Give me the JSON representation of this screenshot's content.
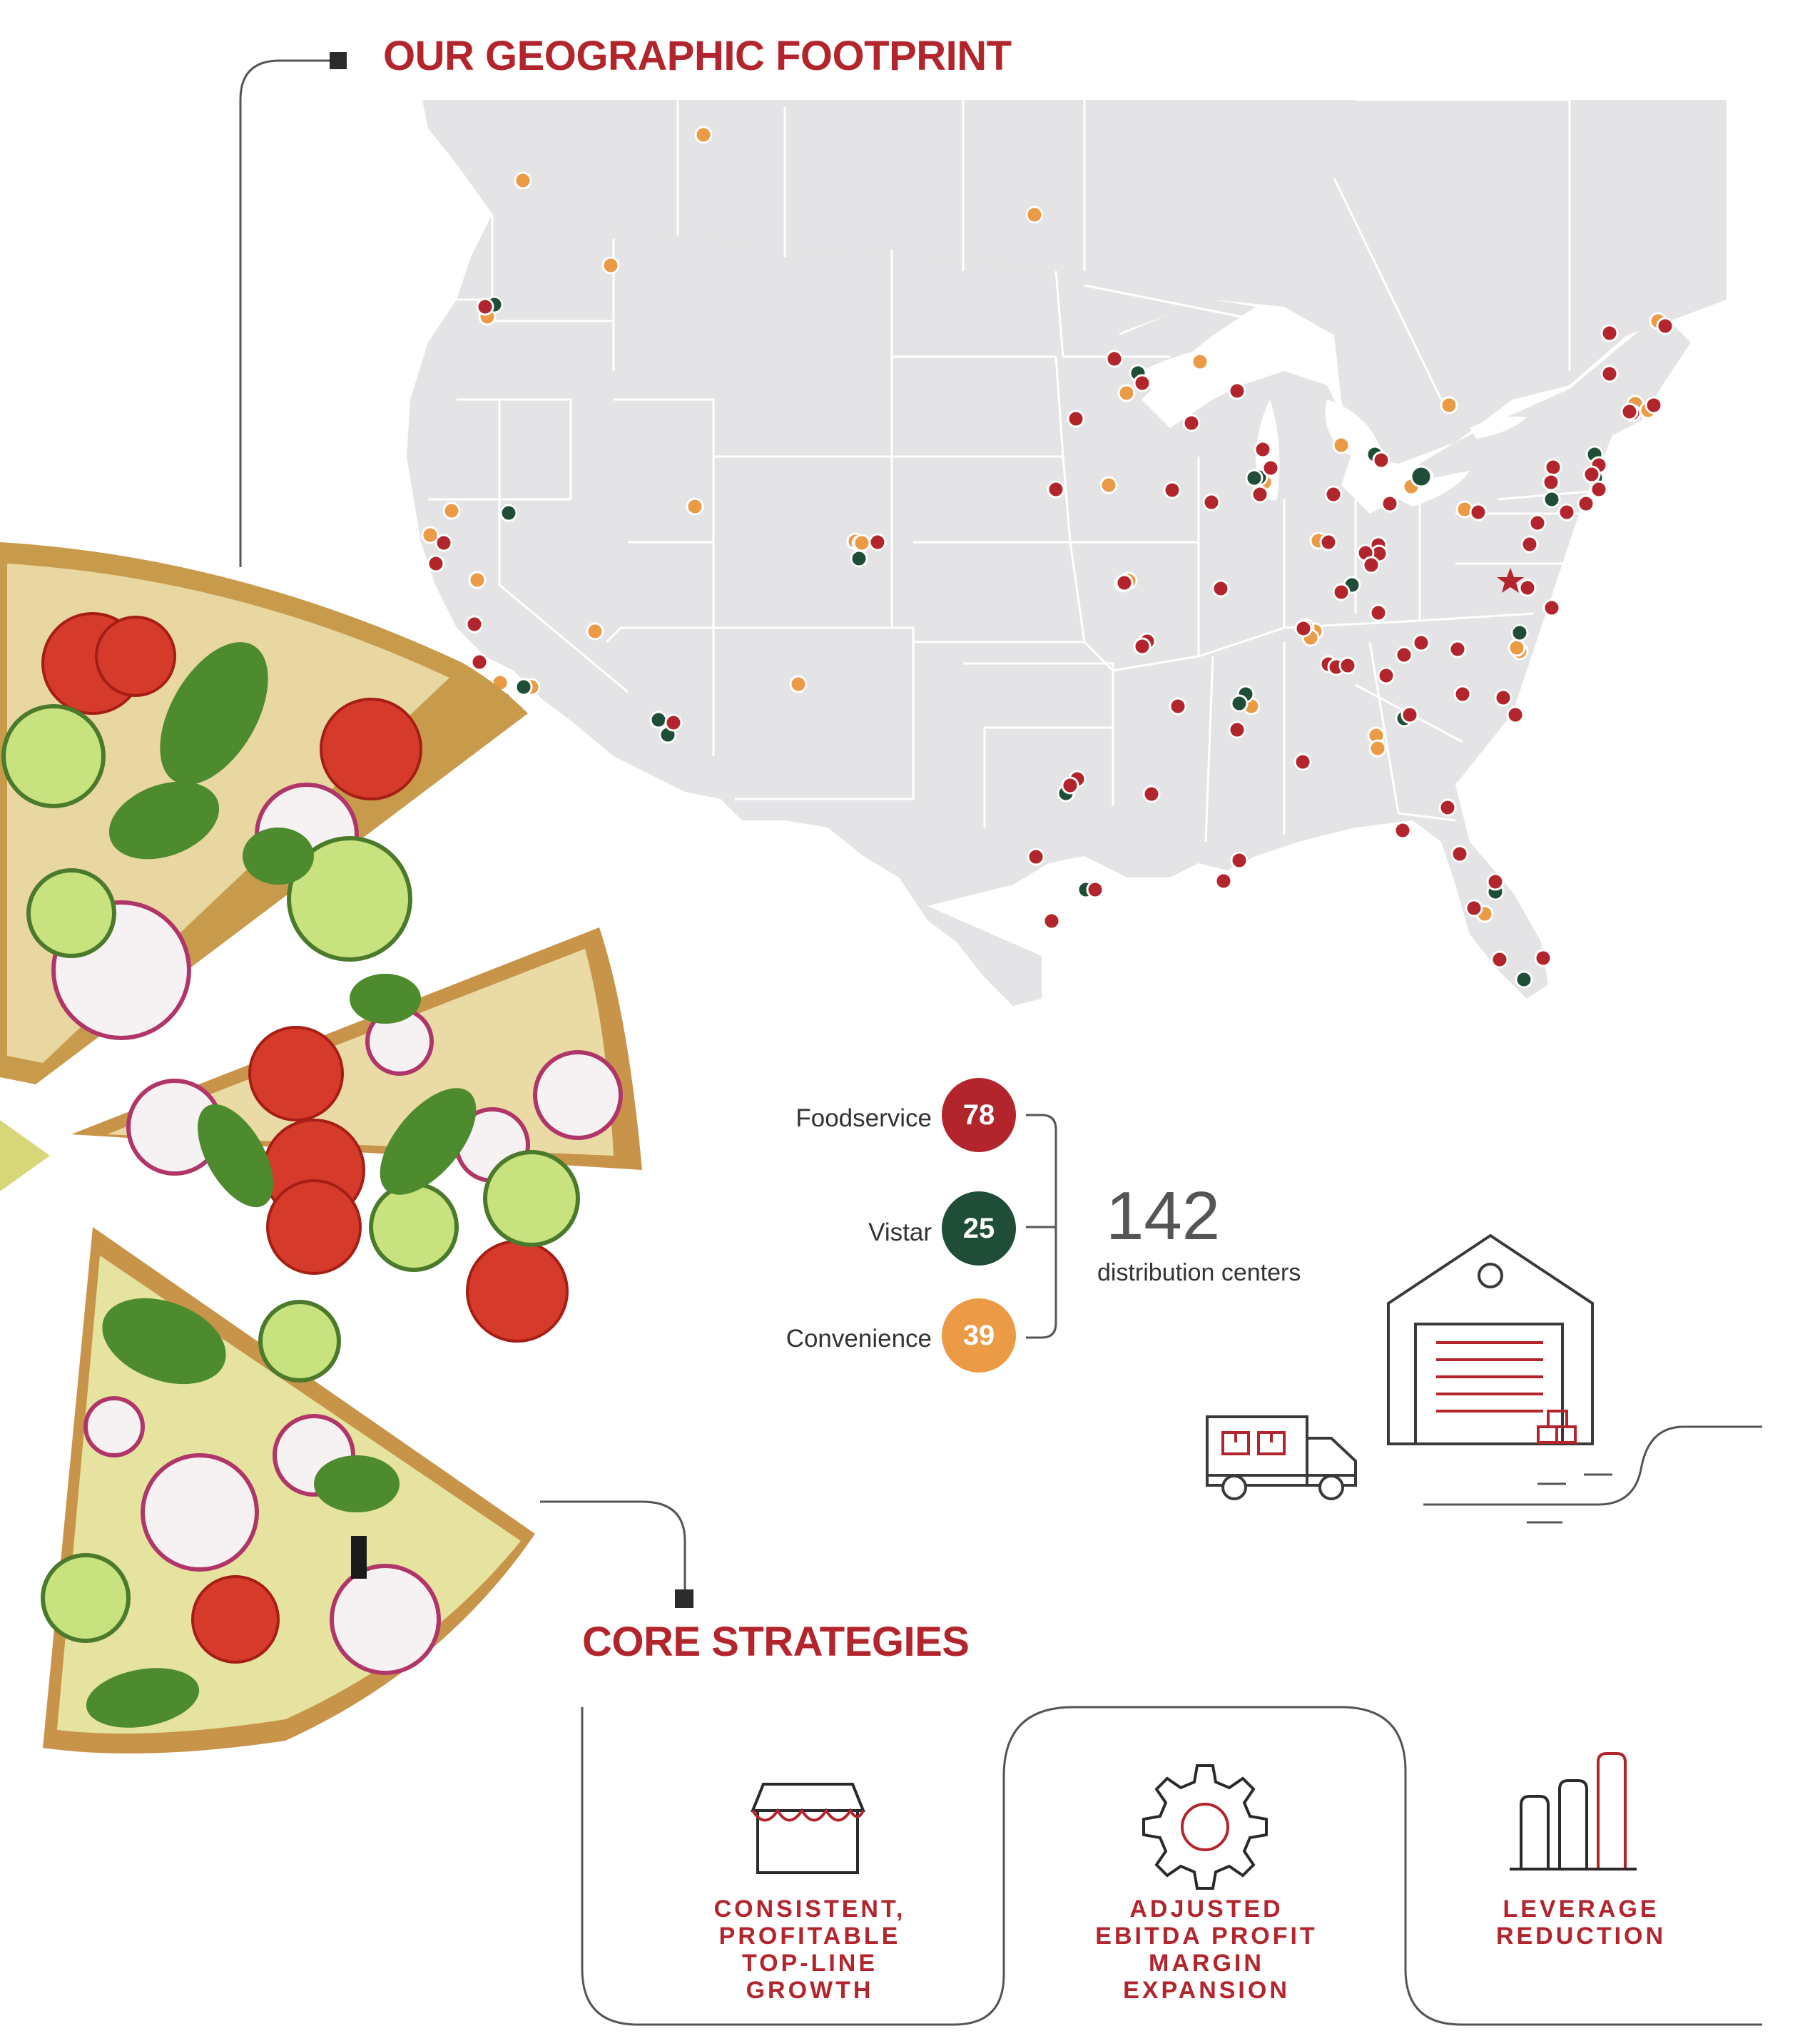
{
  "sections": {
    "geographic_title": "OUR GEOGRAPHIC FOOTPRINT",
    "core_title": "CORE STRATEGIES"
  },
  "legend": {
    "items": [
      {
        "label": "Foodservice",
        "count": "78",
        "color": "#b3252c"
      },
      {
        "label": "Vistar",
        "count": "25",
        "color": "#1f4d38"
      },
      {
        "label": "Convenience",
        "count": "39",
        "color": "#eb9a45"
      }
    ],
    "total_count": "142",
    "total_label": "distribution centers"
  },
  "strategies": [
    {
      "label": "CONSISTENT,\nPROFITABLE\nTOP-LINE\nGROWTH",
      "icon": "storefront-icon"
    },
    {
      "label": "ADJUSTED\nEBITDA PROFIT\nMARGIN\nEXPANSION",
      "icon": "gear-icon"
    },
    {
      "label": "LEVERAGE\nREDUCTION",
      "icon": "bar-chart-icon"
    }
  ],
  "colors": {
    "accent_red": "#b3252c",
    "vistar_green": "#1f4d38",
    "convenience_orange": "#eb9a45",
    "map_fill": "#e4e4e6",
    "map_border": "#ffffff"
  }
}
